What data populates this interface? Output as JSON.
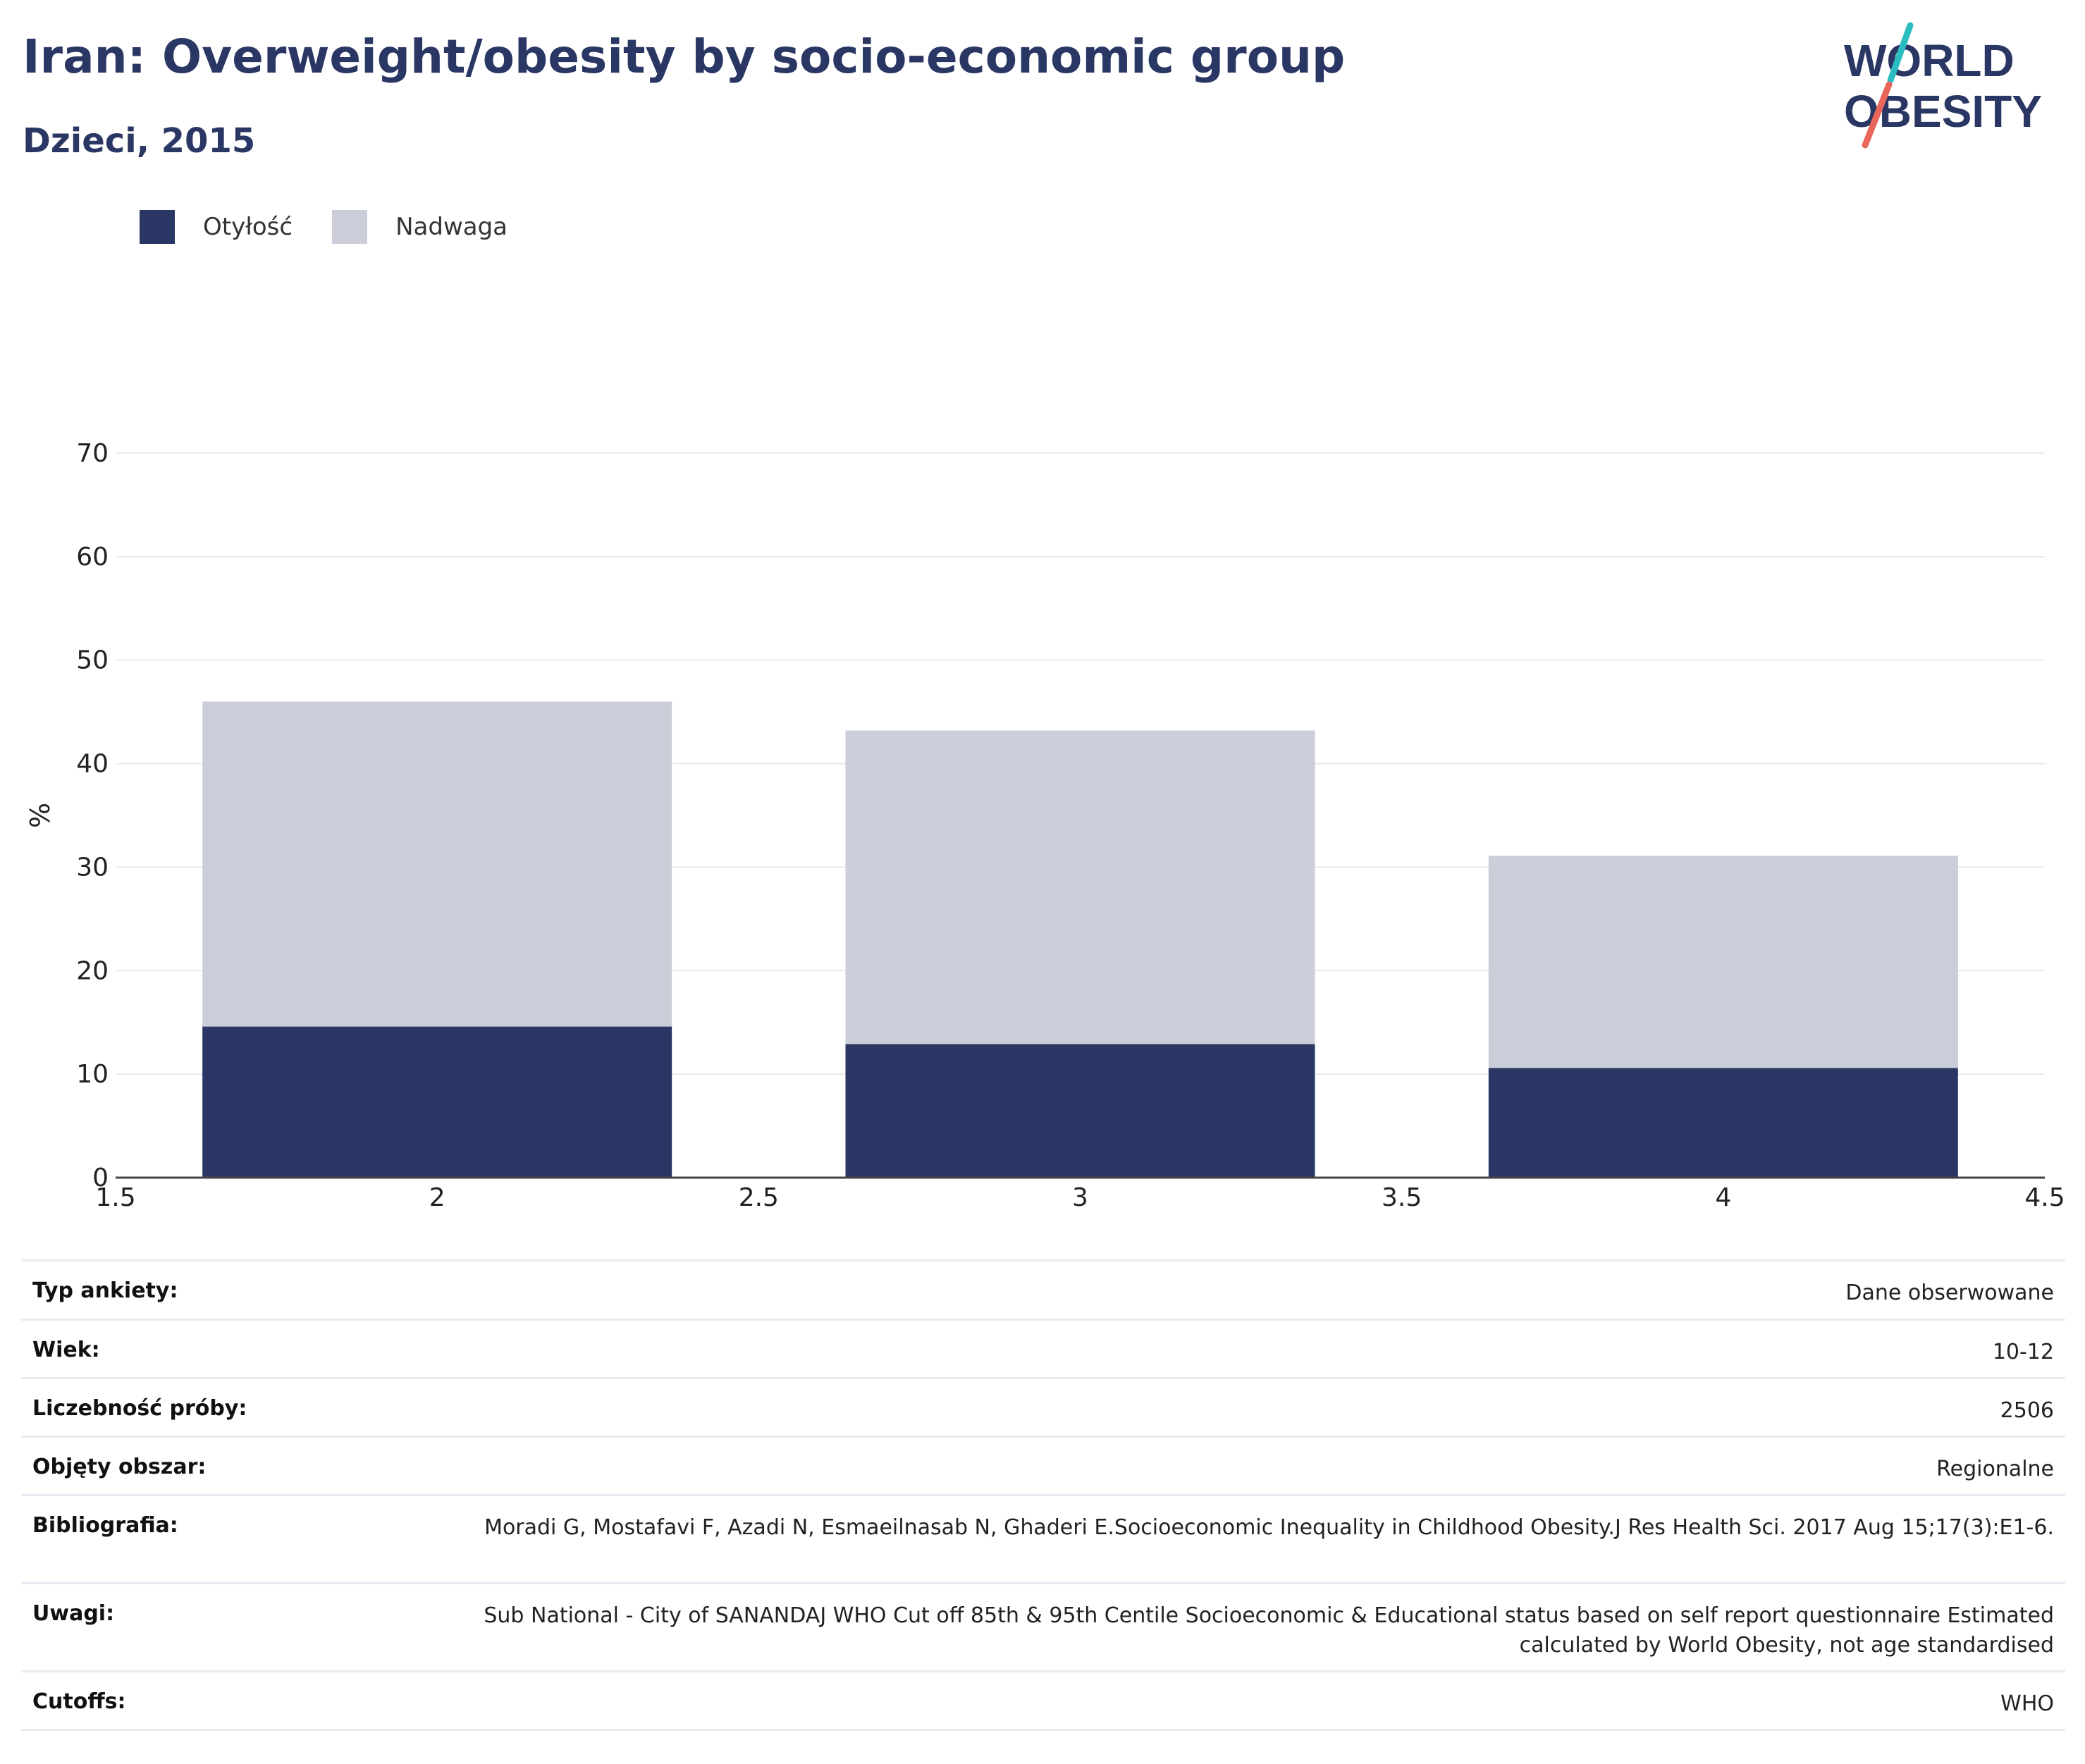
{
  "header": {
    "title": "Iran: Overweight/obesity by socio-economic group",
    "subtitle": "Dzieci, 2015"
  },
  "logo": {
    "line1": "WORLD",
    "line2": "OBESITY"
  },
  "colors": {
    "obesity": "#2a3764",
    "overweight": "#cbcdd8",
    "title": "#2a3764",
    "logo_teal": "#2bbdc0",
    "logo_coral": "#e8665a"
  },
  "legend": [
    {
      "label": "Otyłość",
      "color": "#2a3764"
    },
    {
      "label": "Nadwaga",
      "color": "#cbcdd8"
    }
  ],
  "chart_data": {
    "type": "bar",
    "stacked": true,
    "x": [
      2,
      3,
      4
    ],
    "series": [
      {
        "name": "Otyłość",
        "values": [
          14.6,
          12.9,
          10.6
        ]
      },
      {
        "name": "Nadwaga",
        "values": [
          31.4,
          30.3,
          20.5
        ]
      }
    ],
    "xlim": [
      1.5,
      4.5
    ],
    "ylim": [
      0,
      70
    ],
    "xticks": [
      "1.5",
      "2",
      "2.5",
      "3",
      "3.5",
      "4",
      "4.5"
    ],
    "yticks": [
      "0",
      "10",
      "20",
      "30",
      "40",
      "50",
      "60",
      "70"
    ],
    "ylabel": "%",
    "grid": true,
    "legend_position": "top-left"
  },
  "info": [
    {
      "label": "Typ ankiety:",
      "value": "Dane obserwowane"
    },
    {
      "label": "Wiek:",
      "value": "10-12"
    },
    {
      "label": "Liczebność próby:",
      "value": "2506"
    },
    {
      "label": "Objęty obszar:",
      "value": "Regionalne"
    },
    {
      "label": "Bibliografia:",
      "value": "Moradi G, Mostafavi F, Azadi N, Esmaeilnasab N, Ghaderi E.Socioeconomic Inequality in Childhood Obesity.J Res Health Sci. 2017 Aug 15;17(3):E1-6."
    },
    {
      "label": "Uwagi:",
      "value": "Sub National - City of SANANDAJ WHO Cut off 85th & 95th Centile Socioeconomic & Educational status based on self report questionnaire Estimated calculated by World Obesity, not age standardised"
    },
    {
      "label": "Cutoffs:",
      "value": "WHO"
    }
  ]
}
